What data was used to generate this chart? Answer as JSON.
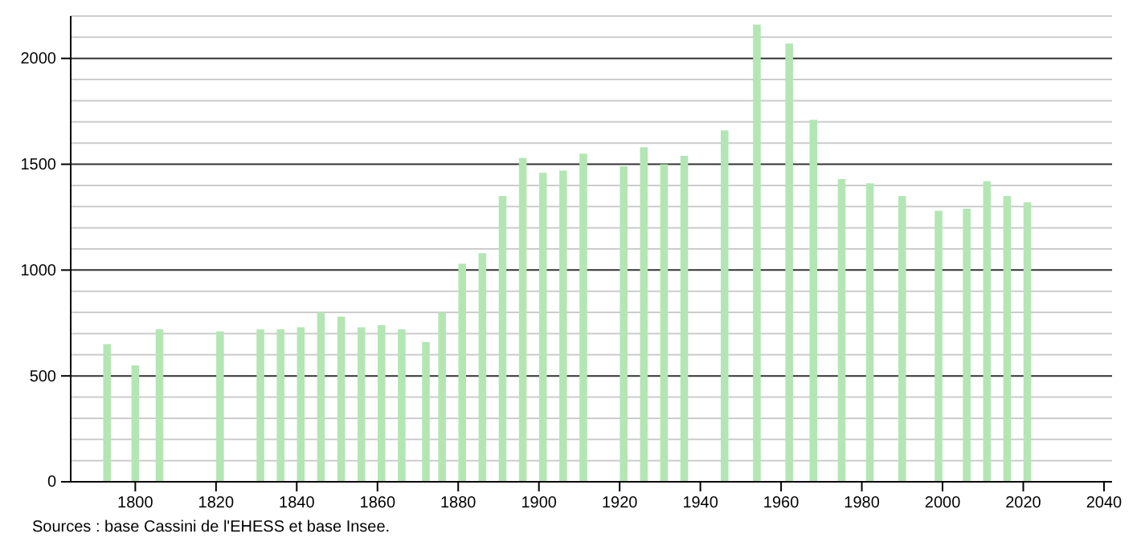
{
  "chart_data": {
    "type": "bar",
    "x": [
      1793,
      1800,
      1806,
      1821,
      1831,
      1836,
      1841,
      1846,
      1851,
      1856,
      1861,
      1866,
      1872,
      1876,
      1881,
      1886,
      1891,
      1896,
      1901,
      1906,
      1911,
      1921,
      1926,
      1931,
      1936,
      1946,
      1954,
      1962,
      1968,
      1975,
      1982,
      1990,
      1999,
      2006,
      2011,
      2016,
      2021
    ],
    "values": [
      650,
      550,
      720,
      710,
      720,
      720,
      730,
      800,
      780,
      730,
      740,
      720,
      660,
      800,
      1030,
      1080,
      1350,
      1530,
      1460,
      1470,
      1550,
      1490,
      1580,
      1500,
      1540,
      1660,
      2160,
      2070,
      1710,
      1430,
      1410,
      1350,
      1280,
      1290,
      1420,
      1350,
      1320
    ],
    "color": "#b3e6b3",
    "xlim": [
      1784,
      2042
    ],
    "xticks": [
      1800,
      1820,
      1840,
      1860,
      1880,
      1900,
      1920,
      1940,
      1960,
      1980,
      2000,
      2020,
      2040
    ],
    "ylim": [
      0,
      2200
    ],
    "yticks": [
      0,
      500,
      1000,
      1500,
      2000
    ],
    "grid": "y",
    "annotations": [
      "Sources : base Cassini de l'EHESS et base Insee."
    ]
  }
}
